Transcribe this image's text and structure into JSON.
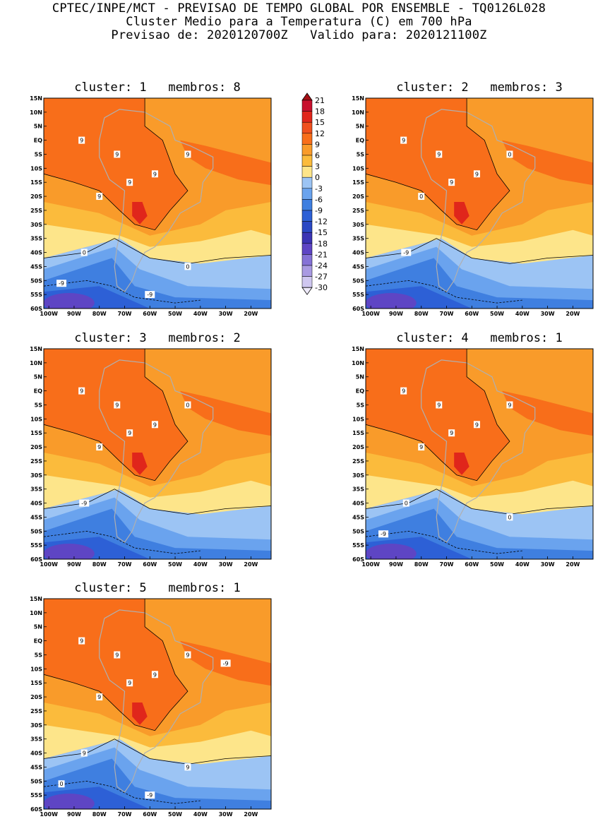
{
  "header": {
    "line1": "CPTEC/INPE/MCT - PREVISAO DE TEMPO GLOBAL POR ENSEMBLE - TQ0126L028",
    "line2": "Cluster Medio para a Temperatura (C) em 700 hPa",
    "line3": "Previsao de: 2020120700Z   Valido para: 2020121100Z"
  },
  "axes": {
    "lat_labels": [
      "15N",
      "10N",
      "5N",
      "EQ",
      "5S",
      "10S",
      "15S",
      "20S",
      "25S",
      "30S",
      "35S",
      "40S",
      "45S",
      "50S",
      "55S",
      "60S"
    ],
    "lon_labels": [
      "100W",
      "90W",
      "80W",
      "70W",
      "60W",
      "50W",
      "40W",
      "30W",
      "20W"
    ]
  },
  "colorbar": {
    "labels": [
      "21",
      "18",
      "15",
      "12",
      "9",
      "6",
      "3",
      "0",
      "-3",
      "-6",
      "-9",
      "-12",
      "-15",
      "-18",
      "-21",
      "-24",
      "-27",
      "-30"
    ],
    "colors": [
      "#a50f15",
      "#c8102e",
      "#e0261b",
      "#f0501e",
      "#f86e1a",
      "#f99b2a",
      "#fbbb3c",
      "#fde58a",
      "#9cc4f4",
      "#6aa3ee",
      "#3f7fe0",
      "#2d60d6",
      "#2a48c4",
      "#3b34b4",
      "#5e45c4",
      "#8572d6",
      "#a99ae2",
      "#cfc7f0",
      "#eeeafa"
    ]
  },
  "panels": [
    {
      "title": "cluster: 1   membros: 8",
      "labels": [
        "9",
        "9",
        "9",
        "9",
        "9",
        "9",
        "0",
        "0",
        "-9",
        "-9"
      ]
    },
    {
      "title": "cluster: 2   membros: 3",
      "labels": [
        "9",
        "9",
        "9",
        "9",
        "0",
        "0",
        "-9"
      ]
    },
    {
      "title": "cluster: 3   membros: 2",
      "labels": [
        "9",
        "9",
        "9",
        "9",
        "9",
        "0",
        "-9"
      ]
    },
    {
      "title": "cluster: 4   membros: 1",
      "labels": [
        "9",
        "9",
        "9",
        "9",
        "9",
        "9",
        "0",
        "0",
        "-9"
      ]
    },
    {
      "title": "cluster: 5   membros: 1",
      "labels": [
        "9",
        "9",
        "9",
        "9",
        "9",
        "9",
        "9",
        "9",
        "0",
        "-9",
        "-9"
      ]
    }
  ]
}
